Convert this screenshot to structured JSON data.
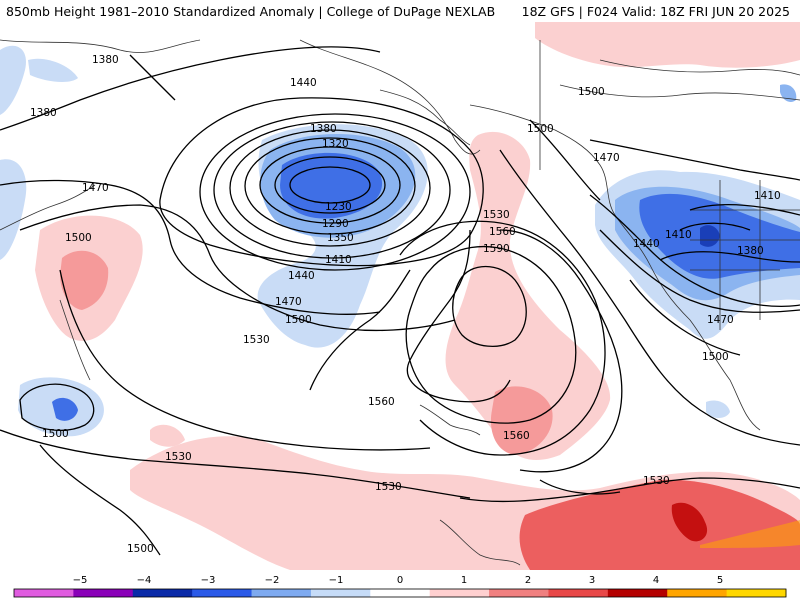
{
  "header": {
    "title": "850mb Height 1981–2010 Standardized Anomaly | College of DuPage NEXLAB",
    "run": "18Z GFS | F024 Valid: 18Z FRI JUN 20 2025"
  },
  "contour_labels": [
    {
      "id": "c1380a",
      "text": "1380"
    },
    {
      "id": "c1380b",
      "text": "1380"
    },
    {
      "id": "c1440a",
      "text": "1440"
    },
    {
      "id": "c1500a",
      "text": "1500"
    },
    {
      "id": "c1500b",
      "text": "1500"
    },
    {
      "id": "c1470a",
      "text": "1470"
    },
    {
      "id": "c1380c",
      "text": "1380"
    },
    {
      "id": "c1320",
      "text": "1320"
    },
    {
      "id": "c1230",
      "text": "1230"
    },
    {
      "id": "c1290",
      "text": "1290"
    },
    {
      "id": "c1350",
      "text": "1350"
    },
    {
      "id": "c1410a",
      "text": "1410"
    },
    {
      "id": "c1440b",
      "text": "1440"
    },
    {
      "id": "c1470b",
      "text": "1470"
    },
    {
      "id": "c1500c",
      "text": "1500"
    },
    {
      "id": "c1530a",
      "text": "1530"
    },
    {
      "id": "c1530b",
      "text": "1530"
    },
    {
      "id": "c1560a",
      "text": "1560"
    },
    {
      "id": "c1590",
      "text": "1590"
    },
    {
      "id": "c1470c",
      "text": "1470"
    },
    {
      "id": "c1410b",
      "text": "1410"
    },
    {
      "id": "c1440c",
      "text": "1440"
    },
    {
      "id": "c1410c",
      "text": "1410"
    },
    {
      "id": "c1380d",
      "text": "1380"
    },
    {
      "id": "c1470d",
      "text": "1470"
    },
    {
      "id": "c1500d",
      "text": "1500"
    },
    {
      "id": "c1500e",
      "text": "1500"
    },
    {
      "id": "c1560b",
      "text": "1560"
    },
    {
      "id": "c1560c",
      "text": "1560"
    },
    {
      "id": "c1530c",
      "text": "1530"
    },
    {
      "id": "c1530d",
      "text": "1530"
    },
    {
      "id": "c1530e",
      "text": "1530"
    },
    {
      "id": "c1500f",
      "text": "1500"
    }
  ],
  "colorbar": {
    "ticks": [
      "−5",
      "−4",
      "−3",
      "−2",
      "−1",
      "0",
      "1",
      "2",
      "3",
      "4",
      "5"
    ],
    "colors": [
      "#e05ce0",
      "#8a00b8",
      "#0a2aa8",
      "#2a5ae8",
      "#7eaaf0",
      "#c6dcf8",
      "#ffffff",
      "#ffd0d0",
      "#f08080",
      "#e84848",
      "#b40000",
      "#ffa500",
      "#ffd700"
    ]
  },
  "legend_colors": {
    "neg1": "#c9dcf6",
    "neg2": "#8bb4f0",
    "neg3": "#3f6fe6",
    "neg4": "#1a3fb8",
    "pos1": "#fbd0d0",
    "pos2": "#f59a9a",
    "pos3": "#ec5f5f",
    "pos4": "#c41010"
  }
}
